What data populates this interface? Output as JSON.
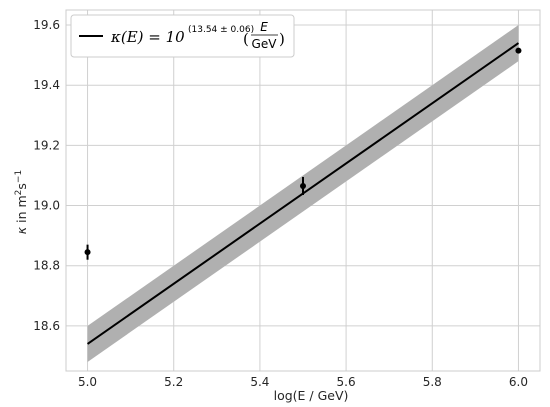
{
  "chart_data": {
    "type": "scatter",
    "title": "",
    "xlabel": "log(E / GeV)",
    "ylabel_parts": {
      "kappa": "κ",
      "in": " in m",
      "sq": "2",
      "s": "s",
      "neg": "−1"
    },
    "xlim": [
      4.95,
      6.05
    ],
    "ylim": [
      18.45,
      19.65
    ],
    "xticks": [
      "5.0",
      "5.2",
      "5.4",
      "5.6",
      "5.8",
      "6.0"
    ],
    "xtick_values": [
      5.0,
      5.2,
      5.4,
      5.6,
      5.8,
      6.0
    ],
    "yticks": [
      "18.6",
      "18.8",
      "19.0",
      "19.2",
      "19.4",
      "19.6"
    ],
    "ytick_values": [
      18.6,
      18.8,
      19.0,
      19.2,
      19.4,
      19.6
    ],
    "grid": true,
    "legend_position": "top-left",
    "points": [
      {
        "x": 5.0,
        "y": 18.845,
        "yerr": 0.025
      },
      {
        "x": 5.5,
        "y": 19.065,
        "yerr": 0.03
      },
      {
        "x": 6.0,
        "y": 19.515,
        "yerr": 0.006
      }
    ],
    "fit": {
      "x": [
        5.0,
        6.0
      ],
      "y": [
        18.54,
        19.54
      ],
      "band_upper": [
        18.6,
        19.6
      ],
      "band_lower": [
        18.48,
        19.48
      ]
    },
    "legend": {
      "main": "κ(E) = 10",
      "exponent": "(13.54 ± 0.06)",
      "numerator": "E",
      "denominator": "GeV"
    },
    "colors": {
      "line": "#000000",
      "band": "#b0b0b0",
      "points": "#000000",
      "grid": "#d0d0d0"
    }
  }
}
